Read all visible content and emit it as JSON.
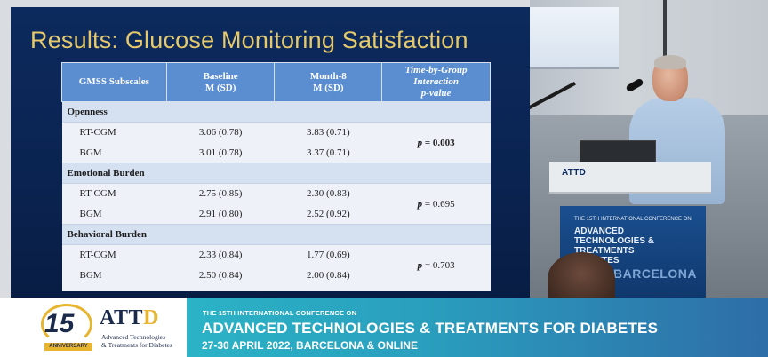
{
  "slide": {
    "title": "Results: Glucose Monitoring Satisfaction",
    "table": {
      "headers": {
        "subscale": "GMSS Subscales",
        "baseline_line1": "Baseline",
        "baseline_line2": "M (SD)",
        "month8_line1": "Month-8",
        "month8_line2": "M (SD)",
        "interaction_line1": "Time-by-Group",
        "interaction_line2": "Interaction",
        "interaction_line3": "p-value"
      },
      "sections": [
        {
          "name": "Openness",
          "rows": [
            {
              "group": "RT-CGM",
              "baseline": "3.06 (0.78)",
              "month8": "3.83 (0.71)"
            },
            {
              "group": "BGM",
              "baseline": "3.01 (0.78)",
              "month8": "3.37 (0.71)"
            }
          ],
          "p_value": "= 0.003"
        },
        {
          "name": "Emotional Burden",
          "rows": [
            {
              "group": "RT-CGM",
              "baseline": "2.75 (0.85)",
              "month8": "2.30 (0.83)"
            },
            {
              "group": "BGM",
              "baseline": "2.91 (0.80)",
              "month8": "2.52 (0.92)"
            }
          ],
          "p_value": "= 0.695"
        },
        {
          "name": "Behavioral Burden",
          "rows": [
            {
              "group": "RT-CGM",
              "baseline": "2.33 (0.84)",
              "month8": "1.77 (0.69)"
            },
            {
              "group": "BGM",
              "baseline": "2.50 (0.84)",
              "month8": "2.00 (0.84)"
            }
          ],
          "p_value": "= 0.703"
        }
      ],
      "p_letter": "p"
    }
  },
  "podium": {
    "logo": "ATTD",
    "conf_small": "THE 15TH INTERNATIONAL CONFERENCE ON",
    "line1": "ADVANCED",
    "line2": "TECHNOLOGIES &",
    "line3": "TREATMENTS",
    "line4": "DIABETES",
    "city": "BARCELONA"
  },
  "banner": {
    "anniversary_number": "15",
    "anniversary_label": "ANNIVERSARY",
    "logo_main": "ATT",
    "logo_d": "D",
    "logo_sub1": "Advanced Technologies",
    "logo_sub2": "& Treatments for Diabetes",
    "conference_pre": "THE 15TH INTERNATIONAL CONFERENCE ON",
    "conference_name": "ADVANCED TECHNOLOGIES & TREATMENTS FOR DIABETES",
    "conference_date": "27-30 APRIL 2022, BARCELONA & ONLINE"
  },
  "colors": {
    "slide_bg": "#0d2a5e",
    "title_gold": "#e5c96a",
    "header_blue": "#5b8ed1",
    "banner_teal": "#2bb3c6"
  }
}
